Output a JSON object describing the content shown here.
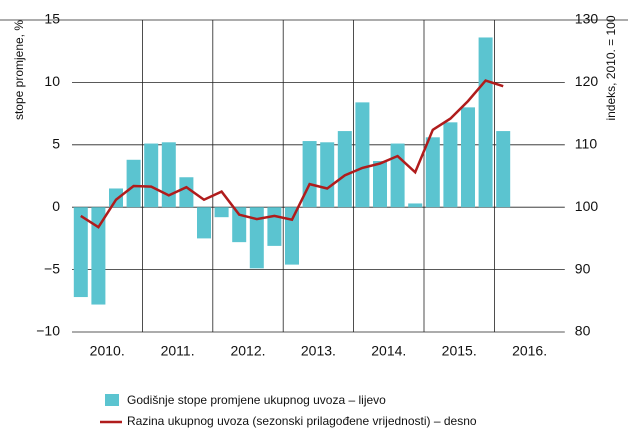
{
  "chart_data": {
    "type": "bar_line",
    "y_label": "stope promjene, %",
    "y2_label": "indeks, 2010. = 100",
    "categories": [
      "2010.",
      null,
      null,
      null,
      "2011.",
      null,
      null,
      null,
      "2012.",
      null,
      null,
      null,
      "2013.",
      null,
      null,
      null,
      "2014.",
      null,
      null,
      null,
      "2015.",
      null,
      null,
      null,
      "2016."
    ],
    "series": [
      {
        "name": "Godišnje stope promjene ukupnog uvoza – lijevo",
        "type": "bar",
        "color": "#5bc4d0",
        "values": [
          -7.2,
          -7.8,
          1.5,
          3.8,
          5.1,
          5.2,
          2.4,
          -2.5,
          -0.8,
          -2.8,
          -4.9,
          -3.1,
          -4.6,
          5.3,
          5.2,
          6.1,
          8.4,
          3.7,
          5.1,
          0.3,
          5.6,
          6.8,
          8.0,
          13.6,
          6.1
        ]
      },
      {
        "name": "Razina ukupnog uvoza (sezonski prilagođene vrijednosti) – desno",
        "type": "line",
        "axis": "y2",
        "color": "#b01c1c",
        "values": [
          98.6,
          96.8,
          101.2,
          103.4,
          103.3,
          101.9,
          103.2,
          101.2,
          102.5,
          98.8,
          98.1,
          98.6,
          98.0,
          103.7,
          103.0,
          105.1,
          106.3,
          107.0,
          108.2,
          105.6,
          112.4,
          114.2,
          117.0,
          120.3,
          119.4
        ]
      }
    ],
    "ylim": [
      -10,
      15
    ],
    "yticks": [
      {
        "value": -10,
        "label": "−10"
      },
      {
        "value": -5,
        "label": "−5"
      },
      0,
      5,
      10,
      15
    ],
    "y2lim": [
      80,
      130
    ],
    "y2ticks": [
      80,
      90,
      100,
      110,
      120,
      130
    ],
    "grid": true
  }
}
